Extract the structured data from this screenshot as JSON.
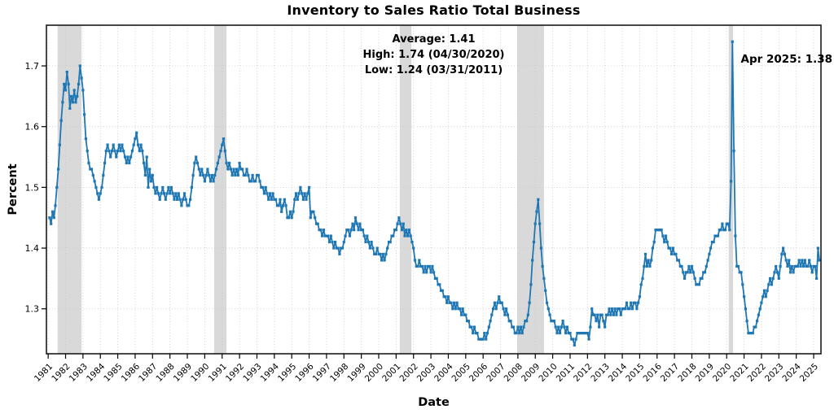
{
  "annotations": {
    "summary_lines": [
      "Average: 1.41",
      "High: 1.74 (04/30/2020)",
      "Low: 1.24 (03/31/2011)"
    ],
    "latest": "Apr 2025: 1.38"
  },
  "chart_data": {
    "type": "line",
    "title": "Inventory to Sales Ratio Total Business",
    "xlabel": "Date",
    "ylabel": "Percent",
    "series_name": "Inventory to Sales Ratio",
    "frequency": "monthly",
    "start": "1981-01",
    "end": "2025-04",
    "values": [
      1.45,
      1.44,
      1.46,
      1.45,
      1.47,
      1.5,
      1.53,
      1.57,
      1.61,
      1.64,
      1.67,
      1.66,
      1.69,
      1.67,
      1.63,
      1.65,
      1.64,
      1.66,
      1.64,
      1.65,
      1.67,
      1.7,
      1.68,
      1.66,
      1.62,
      1.58,
      1.56,
      1.54,
      1.53,
      1.53,
      1.52,
      1.51,
      1.5,
      1.49,
      1.48,
      1.49,
      1.5,
      1.52,
      1.54,
      1.56,
      1.57,
      1.56,
      1.55,
      1.56,
      1.57,
      1.56,
      1.55,
      1.56,
      1.57,
      1.56,
      1.57,
      1.56,
      1.55,
      1.54,
      1.55,
      1.54,
      1.55,
      1.56,
      1.57,
      1.58,
      1.59,
      1.57,
      1.56,
      1.57,
      1.56,
      1.54,
      1.52,
      1.55,
      1.5,
      1.53,
      1.51,
      1.52,
      1.5,
      1.49,
      1.5,
      1.49,
      1.48,
      1.49,
      1.5,
      1.49,
      1.48,
      1.49,
      1.5,
      1.49,
      1.5,
      1.49,
      1.48,
      1.49,
      1.48,
      1.49,
      1.48,
      1.47,
      1.48,
      1.49,
      1.48,
      1.47,
      1.47,
      1.48,
      1.5,
      1.52,
      1.54,
      1.55,
      1.54,
      1.53,
      1.52,
      1.53,
      1.52,
      1.51,
      1.52,
      1.53,
      1.52,
      1.51,
      1.52,
      1.51,
      1.52,
      1.53,
      1.54,
      1.55,
      1.56,
      1.57,
      1.58,
      1.56,
      1.54,
      1.53,
      1.54,
      1.53,
      1.52,
      1.53,
      1.52,
      1.53,
      1.52,
      1.54,
      1.53,
      1.53,
      1.52,
      1.52,
      1.53,
      1.52,
      1.51,
      1.51,
      1.52,
      1.51,
      1.51,
      1.52,
      1.52,
      1.51,
      1.5,
      1.5,
      1.49,
      1.5,
      1.49,
      1.48,
      1.49,
      1.48,
      1.49,
      1.48,
      1.48,
      1.47,
      1.47,
      1.48,
      1.46,
      1.47,
      1.48,
      1.47,
      1.45,
      1.45,
      1.46,
      1.45,
      1.46,
      1.48,
      1.49,
      1.48,
      1.49,
      1.5,
      1.49,
      1.48,
      1.49,
      1.48,
      1.49,
      1.5,
      1.45,
      1.46,
      1.46,
      1.45,
      1.44,
      1.44,
      1.43,
      1.43,
      1.42,
      1.43,
      1.42,
      1.42,
      1.42,
      1.41,
      1.42,
      1.41,
      1.4,
      1.41,
      1.4,
      1.4,
      1.39,
      1.4,
      1.4,
      1.41,
      1.42,
      1.43,
      1.43,
      1.42,
      1.43,
      1.44,
      1.43,
      1.45,
      1.44,
      1.43,
      1.44,
      1.43,
      1.43,
      1.42,
      1.41,
      1.42,
      1.41,
      1.4,
      1.41,
      1.4,
      1.39,
      1.39,
      1.4,
      1.39,
      1.39,
      1.38,
      1.39,
      1.38,
      1.39,
      1.4,
      1.41,
      1.41,
      1.42,
      1.42,
      1.43,
      1.43,
      1.44,
      1.45,
      1.44,
      1.43,
      1.44,
      1.42,
      1.43,
      1.42,
      1.43,
      1.42,
      1.41,
      1.4,
      1.38,
      1.37,
      1.37,
      1.38,
      1.37,
      1.37,
      1.36,
      1.37,
      1.36,
      1.37,
      1.37,
      1.36,
      1.37,
      1.36,
      1.35,
      1.35,
      1.34,
      1.34,
      1.33,
      1.33,
      1.32,
      1.32,
      1.31,
      1.32,
      1.31,
      1.31,
      1.3,
      1.31,
      1.3,
      1.31,
      1.3,
      1.3,
      1.29,
      1.3,
      1.29,
      1.29,
      1.28,
      1.28,
      1.27,
      1.27,
      1.26,
      1.27,
      1.26,
      1.26,
      1.25,
      1.25,
      1.25,
      1.25,
      1.26,
      1.25,
      1.26,
      1.27,
      1.28,
      1.29,
      1.3,
      1.31,
      1.3,
      1.31,
      1.32,
      1.31,
      1.31,
      1.3,
      1.29,
      1.3,
      1.29,
      1.28,
      1.28,
      1.27,
      1.27,
      1.26,
      1.26,
      1.27,
      1.26,
      1.27,
      1.26,
      1.27,
      1.28,
      1.28,
      1.29,
      1.31,
      1.34,
      1.38,
      1.41,
      1.44,
      1.46,
      1.48,
      1.44,
      1.4,
      1.37,
      1.35,
      1.33,
      1.31,
      1.3,
      1.29,
      1.28,
      1.28,
      1.28,
      1.27,
      1.26,
      1.27,
      1.26,
      1.27,
      1.28,
      1.27,
      1.26,
      1.27,
      1.26,
      1.26,
      1.25,
      1.25,
      1.24,
      1.25,
      1.26,
      1.26,
      1.26,
      1.26,
      1.26,
      1.26,
      1.26,
      1.26,
      1.25,
      1.27,
      1.3,
      1.29,
      1.29,
      1.28,
      1.29,
      1.27,
      1.29,
      1.29,
      1.28,
      1.27,
      1.29,
      1.29,
      1.3,
      1.29,
      1.3,
      1.29,
      1.3,
      1.29,
      1.3,
      1.3,
      1.29,
      1.3,
      1.3,
      1.3,
      1.31,
      1.3,
      1.3,
      1.31,
      1.3,
      1.31,
      1.31,
      1.3,
      1.31,
      1.32,
      1.34,
      1.35,
      1.37,
      1.39,
      1.37,
      1.38,
      1.37,
      1.38,
      1.4,
      1.41,
      1.43,
      1.43,
      1.43,
      1.43,
      1.43,
      1.42,
      1.41,
      1.42,
      1.41,
      1.4,
      1.4,
      1.39,
      1.4,
      1.39,
      1.39,
      1.38,
      1.38,
      1.37,
      1.37,
      1.36,
      1.35,
      1.36,
      1.36,
      1.37,
      1.36,
      1.37,
      1.36,
      1.35,
      1.34,
      1.34,
      1.34,
      1.35,
      1.35,
      1.36,
      1.36,
      1.37,
      1.38,
      1.39,
      1.4,
      1.41,
      1.41,
      1.42,
      1.42,
      1.42,
      1.43,
      1.43,
      1.44,
      1.43,
      1.43,
      1.44,
      1.44,
      1.43,
      1.51,
      1.74,
      1.56,
      1.42,
      1.37,
      1.37,
      1.36,
      1.36,
      1.34,
      1.32,
      1.3,
      1.28,
      1.26,
      1.26,
      1.26,
      1.26,
      1.27,
      1.27,
      1.28,
      1.29,
      1.3,
      1.31,
      1.32,
      1.33,
      1.32,
      1.33,
      1.34,
      1.35,
      1.34,
      1.35,
      1.36,
      1.37,
      1.36,
      1.35,
      1.37,
      1.39,
      1.4,
      1.39,
      1.38,
      1.37,
      1.38,
      1.36,
      1.37,
      1.36,
      1.37,
      1.37,
      1.37,
      1.38,
      1.37,
      1.38,
      1.37,
      1.38,
      1.37,
      1.37,
      1.38,
      1.37,
      1.36,
      1.37,
      1.37,
      1.35,
      1.4,
      1.38
    ],
    "x_ticks": [
      1981,
      1982,
      1983,
      1984,
      1985,
      1986,
      1987,
      1988,
      1989,
      1990,
      1991,
      1992,
      1993,
      1994,
      1995,
      1996,
      1997,
      1998,
      1999,
      2000,
      2001,
      2002,
      2003,
      2004,
      2005,
      2006,
      2007,
      2008,
      2009,
      2010,
      2011,
      2012,
      2013,
      2014,
      2015,
      2016,
      2017,
      2018,
      2019,
      2020,
      2021,
      2022,
      2023,
      2024,
      2025
    ],
    "y_ticks": [
      1.3,
      1.4,
      1.5,
      1.6,
      1.7
    ],
    "xlim": [
      1980.9,
      2025.42
    ],
    "ylim": [
      1.226,
      1.767
    ],
    "grid": true,
    "legend": false,
    "recession_bands": [
      [
        1981.54,
        1982.92
      ],
      [
        1990.54,
        1991.25
      ],
      [
        2001.21,
        2001.88
      ],
      [
        2007.96,
        2009.5
      ],
      [
        2020.12,
        2020.37
      ]
    ],
    "stats": {
      "average": 1.41,
      "high_value": 1.74,
      "high_date": "04/30/2020",
      "low_value": 1.24,
      "low_date": "03/31/2011",
      "latest_label": "Apr 2025",
      "latest_value": 1.38
    },
    "colors": {
      "line": "#1f77b4",
      "band": "#d9d9d9",
      "grid": "#c7c7c7",
      "spine": "#1a1a1a",
      "text": "#000000"
    }
  }
}
